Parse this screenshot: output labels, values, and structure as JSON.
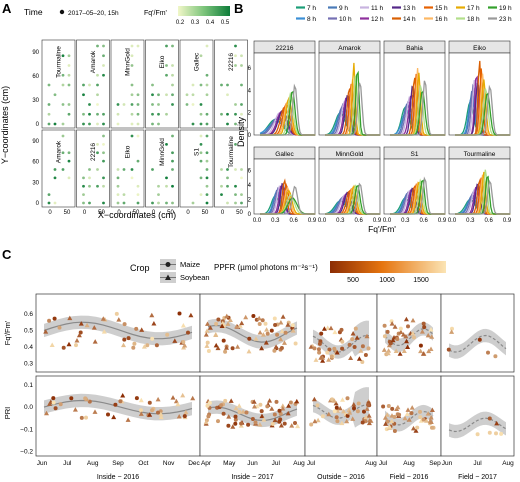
{
  "panel_labels": [
    "A",
    "B",
    "C"
  ],
  "colors": {
    "green_low": "#f1f7c8",
    "green_high": "#0e7d3a",
    "orange_low": "#fbe4b4",
    "orange_high": "#8c2d04",
    "grey_band": "#bdbdbd",
    "frame": "#333333",
    "strip": "#e6e6e6"
  },
  "legend_a": {
    "time_title": "Time",
    "time_value": "2017–05–20, 15h",
    "fill_title": "Fq'/Fm'",
    "fill_ticks": [
      "0.2",
      "0.3",
      "0.4",
      "0.5"
    ]
  },
  "legend_b": {
    "hours": [
      "7 h",
      "8 h",
      "9 h",
      "10 h",
      "11 h",
      "12 h",
      "13 h",
      "14 h",
      "15 h",
      "16 h",
      "17 h",
      "18 h",
      "19 h",
      "23 h"
    ],
    "hour_colors": [
      "#1b9e77",
      "#3b8fd6",
      "#4a7ab8",
      "#7570b3",
      "#c8b3e0",
      "#8e2f9c",
      "#542788",
      "#d95f02",
      "#e66101",
      "#fdb863",
      "#e6ab02",
      "#b2df8a",
      "#33a02c",
      "#999999"
    ]
  },
  "legend_c": {
    "crop_title": "Crop",
    "crops": [
      "Maize",
      "Soybean"
    ],
    "ppfr_title": "PPFR (µmol photons m⁻²s⁻¹)",
    "ppfr_ticks": [
      "500",
      "1000",
      "1500"
    ]
  },
  "chart_data": [
    {
      "type": "scatter",
      "panel": "A",
      "xlabel": "X−coordinates (cm)",
      "ylabel": "Y−coordinates (cm)",
      "x_ticks": [
        "0",
        "50"
      ],
      "y_ticks": [
        "0",
        "30",
        "60",
        "90"
      ],
      "ylim": [
        0,
        100
      ],
      "facets_top": [
        "Tourmaline",
        "Amarok",
        "MinnGold",
        "Eiko",
        "Gallec",
        "22216"
      ],
      "facets_bottom": [
        "Amarok",
        "22216",
        "Eiko",
        "MinnGold",
        "S1",
        "Tourmaline"
      ]
    },
    {
      "type": "line",
      "panel": "B",
      "xlabel": "Fq'/Fm'",
      "ylabel": "Density",
      "x_ticks": [
        "0.0",
        "0.3",
        "0.6",
        "0.9"
      ],
      "y_ticks": [
        "0",
        "2",
        "4",
        "6"
      ],
      "xlim": [
        0,
        0.9
      ],
      "ylim": [
        0,
        7
      ],
      "facets": [
        "22216",
        "Amarok",
        "Bahia",
        "Eiko",
        "Gallec",
        "MinnGold",
        "S1",
        "Tourmaline"
      ],
      "peak_density": [
        [
          1.4,
          1.2,
          1.5,
          1.6,
          2.0,
          2.1,
          2.2,
          2.5,
          2.8,
          3.0,
          3.3,
          3.7,
          4.0,
          4.5
        ],
        [
          2.0,
          2.2,
          2.5,
          2.8,
          3.0,
          3.4,
          3.6,
          4.2,
          4.6,
          5.0,
          6.5,
          5.4,
          6.0,
          4.8
        ],
        [
          2.5,
          2.2,
          2.8,
          3.0,
          3.4,
          3.6,
          4.5,
          5.2,
          5.5,
          6.0,
          5.6,
          4.5,
          4.0,
          5.0
        ],
        [
          3.0,
          3.5,
          4.0,
          4.5,
          5.0,
          5.5,
          4.8,
          6.8,
          6.0,
          5.5,
          5.0,
          4.2,
          3.8,
          4.4
        ],
        [
          2.5,
          3.0,
          3.3,
          3.6,
          3.8,
          4.0,
          4.3,
          4.6,
          4.0,
          3.6,
          3.2,
          2.6,
          2.2,
          3.8
        ],
        [
          1.8,
          2.0,
          2.2,
          2.4,
          2.6,
          2.8,
          3.0,
          3.2,
          3.4,
          3.6,
          3.8,
          3.9,
          4.0,
          4.2
        ],
        [
          2.2,
          2.5,
          2.8,
          3.0,
          3.2,
          3.4,
          3.6,
          3.8,
          4.0,
          4.2,
          4.4,
          4.6,
          4.8,
          5.0
        ],
        [
          2.0,
          2.3,
          2.6,
          3.0,
          3.4,
          3.8,
          4.2,
          4.6,
          5.0,
          5.4,
          5.8,
          6.2,
          5.4,
          4.6
        ]
      ],
      "peak_fq": [
        0.3,
        0.32,
        0.33,
        0.35,
        0.37,
        0.4,
        0.42,
        0.45,
        0.48,
        0.5,
        0.52,
        0.55,
        0.58,
        0.62
      ]
    },
    {
      "type": "scatter",
      "panel": "C",
      "facets": [
        "Inside − 2016",
        "Inside − 2017",
        "Outside − 2016",
        "Field − 2016",
        "Field − 2017"
      ],
      "facet_ticks": [
        [
          "Jun",
          "Jul",
          "Aug",
          "Sep",
          "Oct",
          "Nov",
          "Dec"
        ],
        [
          "Apr",
          "May",
          "Jun",
          "Jul",
          "Aug"
        ],
        [
          "Jul",
          "Aug"
        ],
        [
          "Jul",
          "Aug",
          "Sep"
        ],
        [
          "Jun",
          "Jul",
          "Aug"
        ]
      ],
      "rows": [
        {
          "ylabel": "Fq'/Fm'",
          "y_ticks": [
            "0.3",
            "0.4",
            "0.5",
            "0.6"
          ],
          "ylim": [
            0.25,
            0.72
          ]
        },
        {
          "ylabel": "PRI",
          "y_ticks": [
            "−0.2",
            "−0.1",
            "0.0",
            "0.1"
          ],
          "ylim": [
            -0.22,
            0.14
          ]
        }
      ]
    }
  ]
}
